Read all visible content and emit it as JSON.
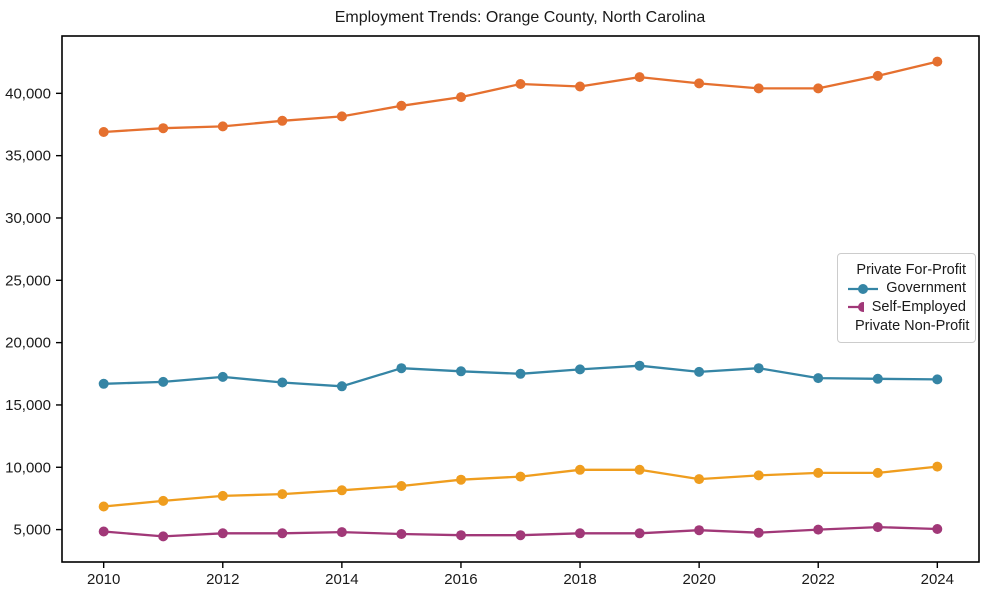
{
  "figure": {
    "title": "Employment Trends: Orange County, North Carolina",
    "background_color": "#ffffff",
    "spine_color": "#000000"
  },
  "chart_data": {
    "type": "line",
    "title": "Employment Trends: Orange County, North Carolina",
    "xlabel": "",
    "ylabel": "",
    "grid": false,
    "legend_position": "center right",
    "xlim": [
      2009.3,
      2024.7
    ],
    "ylim": [
      2400,
      44600
    ],
    "x": [
      2010,
      2011,
      2012,
      2013,
      2014,
      2015,
      2016,
      2017,
      2018,
      2019,
      2020,
      2021,
      2022,
      2023,
      2024
    ],
    "x_ticks": [
      2010,
      2012,
      2014,
      2016,
      2018,
      2020,
      2022,
      2024
    ],
    "x_tick_labels": [
      "2010",
      "2012",
      "2014",
      "2016",
      "2018",
      "2020",
      "2022",
      "2024"
    ],
    "y_ticks": [
      5000,
      10000,
      15000,
      20000,
      25000,
      30000,
      35000,
      40000
    ],
    "y_tick_labels": [
      "5,000",
      "10,000",
      "15,000",
      "20,000",
      "25,000",
      "30,000",
      "35,000",
      "40,000"
    ],
    "marker": "circle",
    "series": [
      {
        "name": "Private For-Profit",
        "color": "#E5702F",
        "values": [
          36900,
          37200,
          37350,
          37800,
          38150,
          39000,
          39700,
          40750,
          40550,
          41300,
          40800,
          40400,
          40400,
          41400,
          42550
        ]
      },
      {
        "name": "Government",
        "color": "#3585A5",
        "values": [
          16700,
          16850,
          17250,
          16800,
          16500,
          17950,
          17700,
          17500,
          17850,
          18150,
          17650,
          17950,
          17150,
          17100,
          17050
        ]
      },
      {
        "name": "Self-Employed",
        "color": "#A13878",
        "values": [
          4850,
          4450,
          4700,
          4700,
          4800,
          4650,
          4550,
          4550,
          4700,
          4700,
          4950,
          4750,
          5000,
          5200,
          5050
        ]
      },
      {
        "name": "Private Non-Profit",
        "color": "#EF9D1E",
        "values": [
          6850,
          7300,
          7700,
          7850,
          8150,
          8500,
          9000,
          9250,
          9800,
          9800,
          9050,
          9350,
          9550,
          9550,
          10050
        ]
      }
    ]
  }
}
